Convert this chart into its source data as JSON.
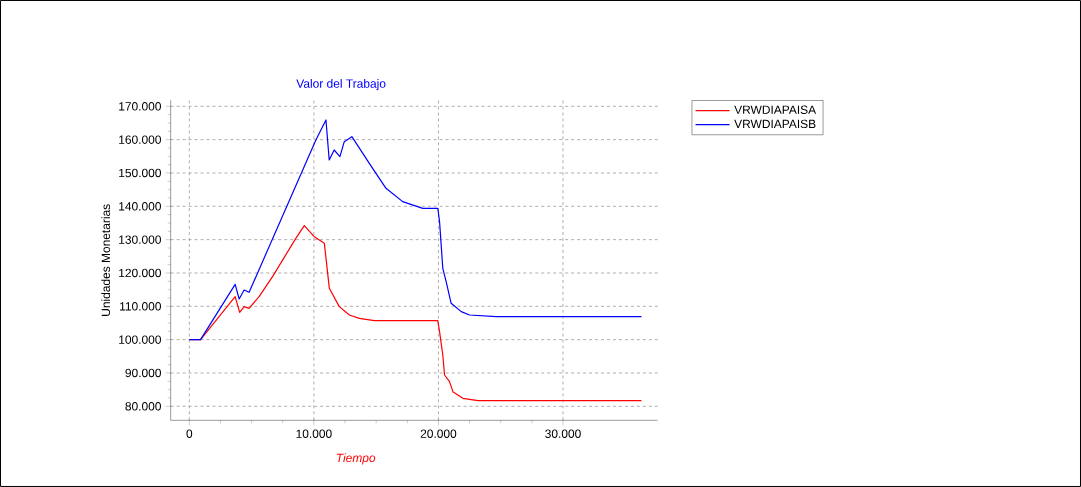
{
  "chart_data": {
    "type": "line",
    "title": "Valor del Trabajo",
    "xlabel": "Tiempo",
    "ylabel": "Unidades Monetarias",
    "x": [
      0,
      900,
      3680,
      4040,
      4400,
      4800,
      5600,
      6680,
      8550,
      9230,
      10030,
      10840,
      11240,
      12040,
      12850,
      13650,
      14860,
      19950,
      20090,
      20350,
      20490,
      20890,
      21160,
      21960,
      23170,
      36300
    ],
    "series": [
      {
        "name": "VRWDIAPAISA",
        "color": "#ff0000",
        "values": [
          100000,
          100000,
          112900,
          108200,
          109900,
          109400,
          112900,
          118900,
          130400,
          134200,
          130900,
          128900,
          115400,
          109900,
          107400,
          106400,
          105700,
          105700,
          102400,
          95400,
          89400,
          87400,
          84400,
          82400,
          81700,
          81700
        ]
      },
      {
        "name": "VRWDIAPAISB",
        "color": "#0000ff",
        "x": [
          0,
          900,
          3680,
          4000,
          4400,
          4800,
          10160,
          10970,
          11230,
          11630,
          12090,
          12440,
          13050,
          14450,
          15790,
          17130,
          18740,
          19950,
          20090,
          20350,
          20620,
          21020,
          21830,
          22500,
          24640,
          36300
        ],
        "values": [
          100000,
          100000,
          116600,
          112200,
          114900,
          114200,
          159900,
          165900,
          153900,
          156900,
          154900,
          159400,
          160900,
          152900,
          145400,
          141400,
          139400,
          139400,
          135400,
          121400,
          117400,
          110900,
          108400,
          107400,
          106900,
          106900
        ]
      }
    ],
    "xlim": [
      -1500,
      37600
    ],
    "ylim": [
      75800,
      171800
    ],
    "xticks": [
      0,
      {
        "value": 10000,
        "label": "10.000"
      },
      {
        "value": 20000,
        "label": "20.000"
      },
      {
        "value": 30000,
        "label": "30.000"
      }
    ],
    "yticks": [
      {
        "value": 80000,
        "label": "80.000"
      },
      {
        "value": 90000,
        "label": "90.000"
      },
      {
        "value": 100000,
        "label": "100.000"
      },
      {
        "value": 110000,
        "label": "110.000"
      },
      {
        "value": 120000,
        "label": "120.000"
      },
      {
        "value": 130000,
        "label": "130.000"
      },
      {
        "value": 140000,
        "label": "140.000"
      },
      {
        "value": 150000,
        "label": "150.000"
      },
      {
        "value": 160000,
        "label": "160.000"
      },
      {
        "value": 170000,
        "label": "170.000"
      }
    ],
    "grid": true,
    "legend": "top right",
    "marker": "none",
    "line_style": "solid"
  }
}
